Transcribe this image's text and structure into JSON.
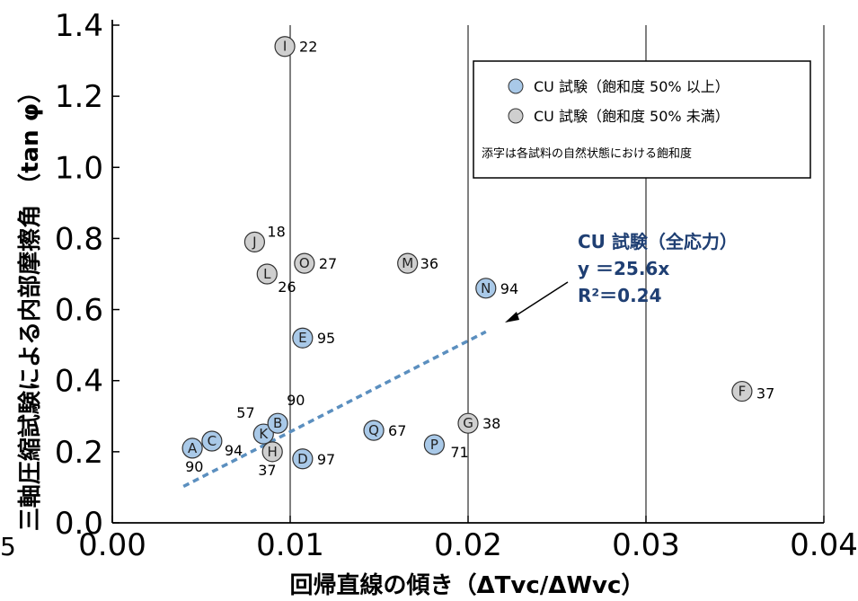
{
  "chart_data": {
    "type": "scatter",
    "xlabel": "回帰直線の傾き（ΔTvc/ΔWvc）",
    "ylabel": "三軸圧縮試験による内部摩擦角 （tan φ）",
    "xlim": [
      0.0,
      0.04
    ],
    "ylim": [
      0.0,
      1.4
    ],
    "x_ticks": [
      "0.00",
      "0.01",
      "0.02",
      "0.03",
      "0.04"
    ],
    "y_ticks": [
      "0.0",
      "0.2",
      "0.4",
      "0.6",
      "0.8",
      "1.0",
      "1.2",
      "1.4"
    ],
    "edge_label": "5",
    "grid": true,
    "colors": {
      "blue": "#a9c9e8",
      "gray": "#cfcfcf",
      "trend": "#5b8fbf",
      "annot": "#1f3f73"
    },
    "legend": {
      "position": "top-right",
      "entries": [
        {
          "group": "blue",
          "label": "CU 試験（飽和度 50% 以上）"
        },
        {
          "group": "gray",
          "label": "CU 試験（飽和度 50% 未満）"
        }
      ],
      "note": "添字は各試料の自然状態における飽和度"
    },
    "annotation": {
      "lines": [
        "CU 試験（全応力）",
        "y ＝25.6x",
        "R²＝0.24"
      ]
    },
    "trendline": {
      "slope": 25.6,
      "x_range": [
        0.004,
        0.021
      ]
    },
    "series": [
      {
        "name": "CU 試験（飽和度 50% 以上）",
        "group": "blue",
        "points": [
          {
            "id": "A",
            "x": 0.0045,
            "y": 0.21,
            "sat": "90"
          },
          {
            "id": "C",
            "x": 0.0056,
            "y": 0.23,
            "sat": "94"
          },
          {
            "id": "K",
            "x": 0.0085,
            "y": 0.25,
            "sat": "57"
          },
          {
            "id": "B",
            "x": 0.0093,
            "y": 0.28,
            "sat": "90"
          },
          {
            "id": "D",
            "x": 0.0107,
            "y": 0.18,
            "sat": "97"
          },
          {
            "id": "E",
            "x": 0.0107,
            "y": 0.52,
            "sat": "95"
          },
          {
            "id": "Q",
            "x": 0.0147,
            "y": 0.26,
            "sat": "67"
          },
          {
            "id": "P",
            "x": 0.0181,
            "y": 0.22,
            "sat": "71"
          },
          {
            "id": "N",
            "x": 0.021,
            "y": 0.66,
            "sat": "94"
          }
        ]
      },
      {
        "name": "CU 試験（飽和度 50% 未満）",
        "group": "gray",
        "points": [
          {
            "id": "H",
            "x": 0.009,
            "y": 0.2,
            "sat": "37"
          },
          {
            "id": "I",
            "x": 0.0097,
            "y": 1.34,
            "sat": "22"
          },
          {
            "id": "J",
            "x": 0.008,
            "y": 0.79,
            "sat": "18"
          },
          {
            "id": "L",
            "x": 0.0087,
            "y": 0.7,
            "sat": "26"
          },
          {
            "id": "O",
            "x": 0.0108,
            "y": 0.73,
            "sat": "27"
          },
          {
            "id": "M",
            "x": 0.0166,
            "y": 0.73,
            "sat": "36"
          },
          {
            "id": "G",
            "x": 0.02,
            "y": 0.28,
            "sat": "38"
          },
          {
            "id": "F",
            "x": 0.0354,
            "y": 0.37,
            "sat": "37"
          }
        ]
      }
    ]
  }
}
